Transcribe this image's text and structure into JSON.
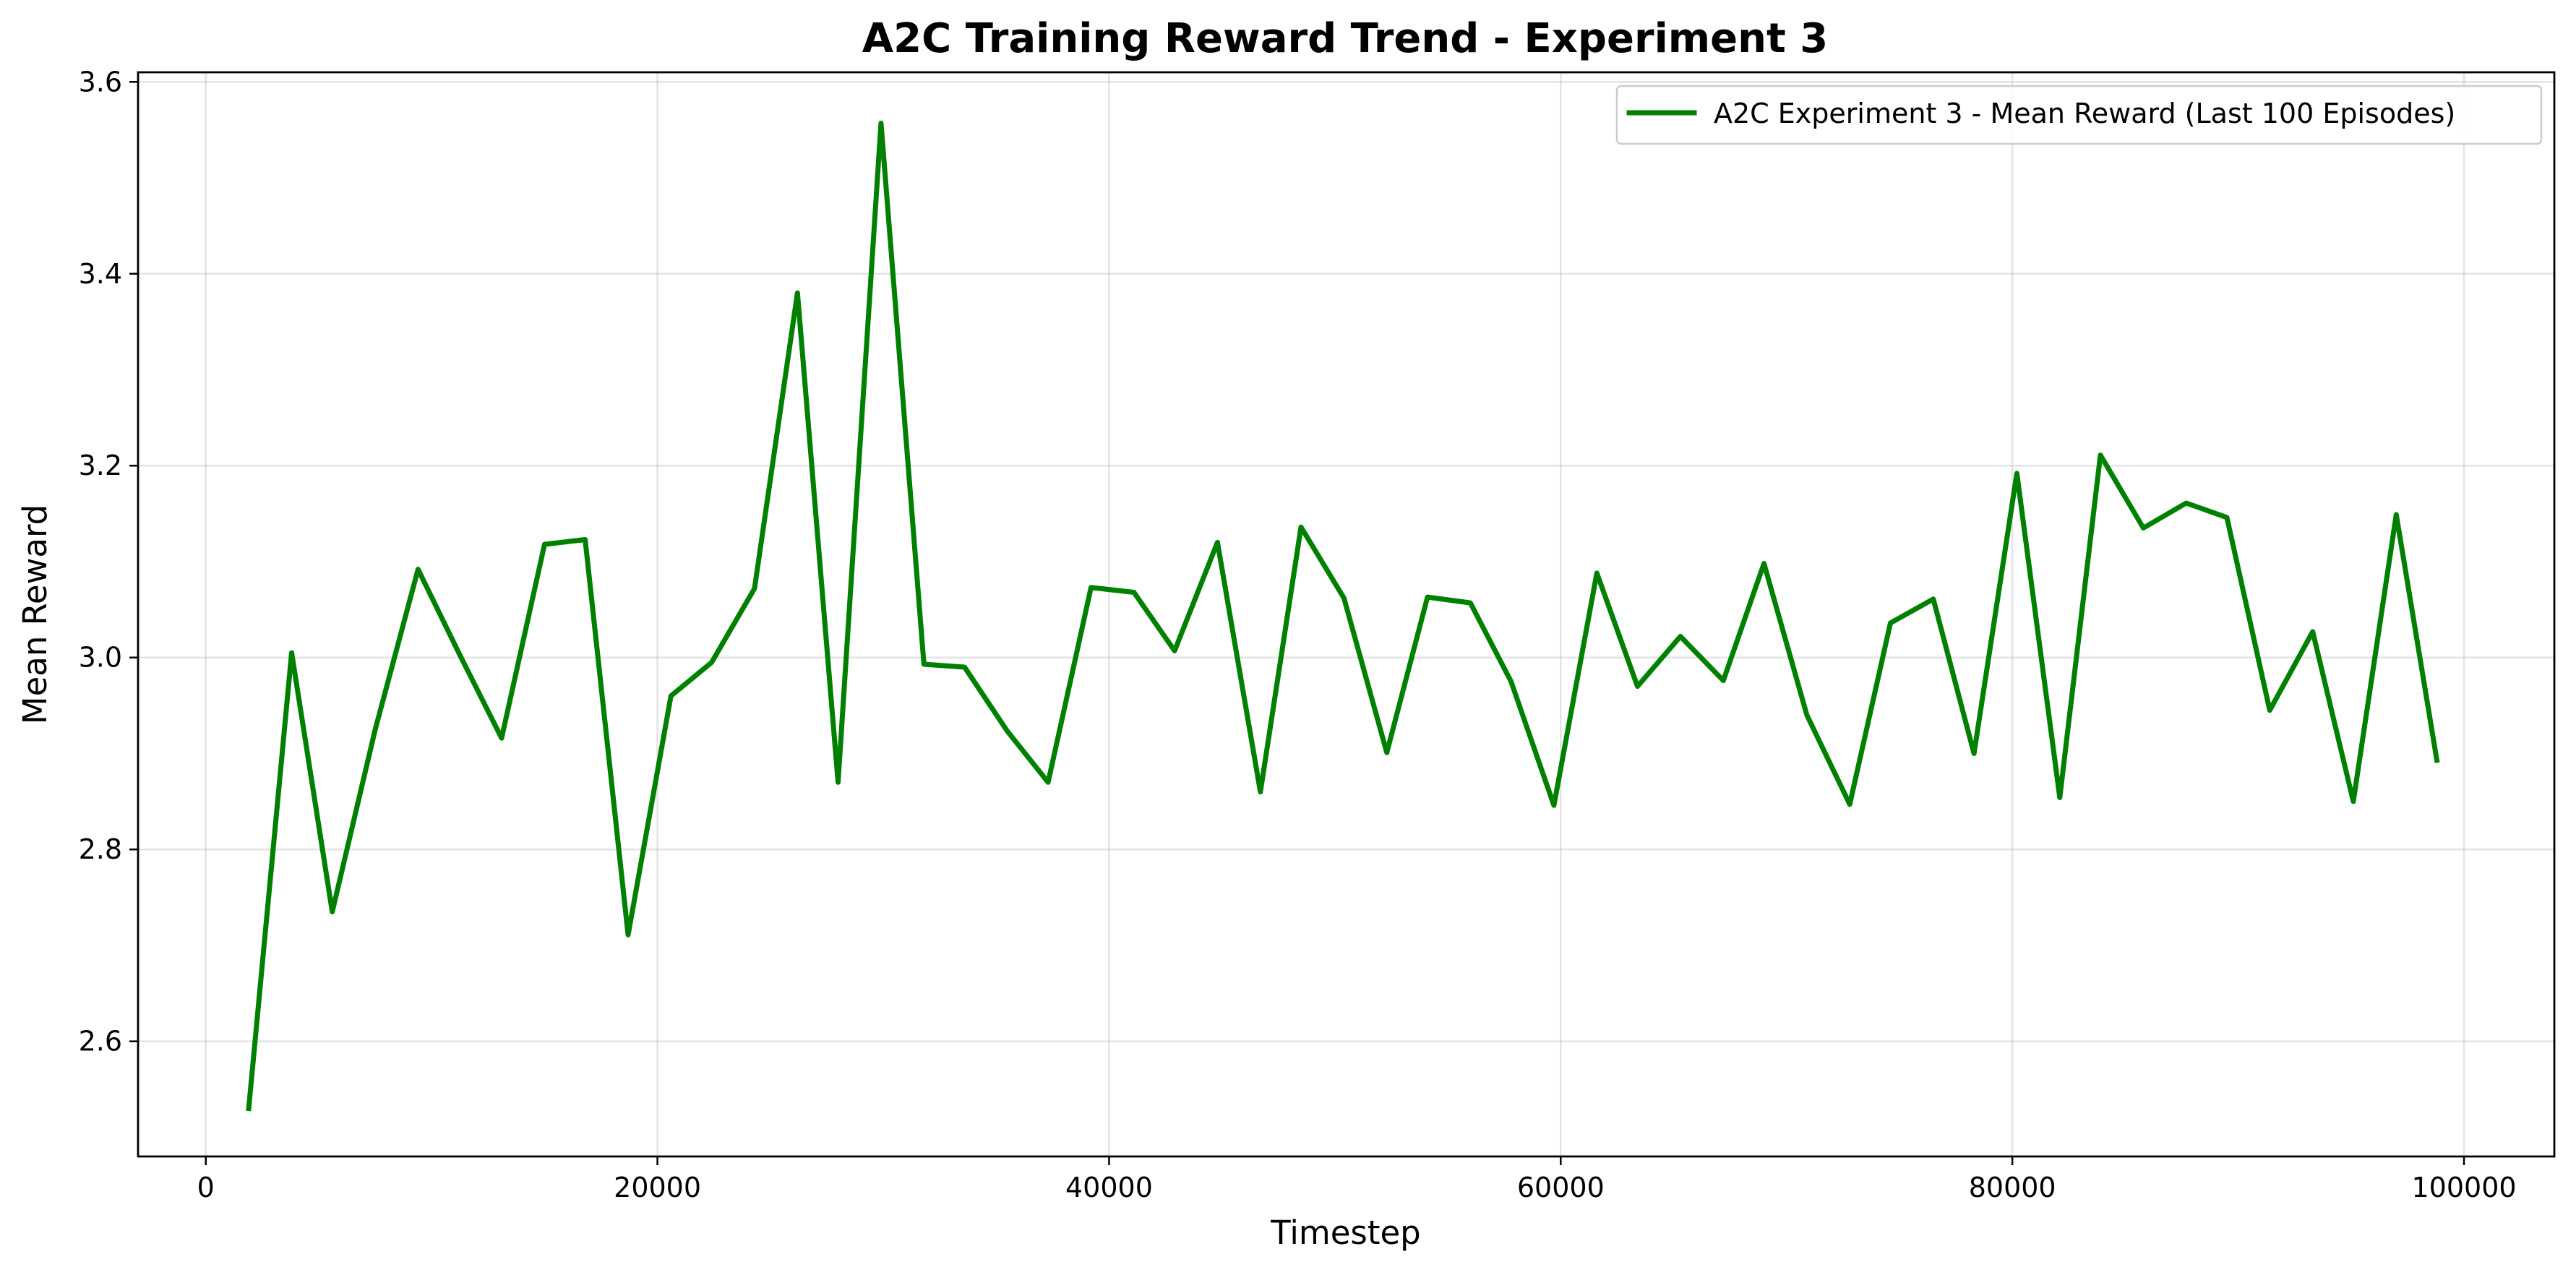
{
  "chart_data": {
    "type": "line",
    "title": "A2C Training Reward Trend - Experiment 3",
    "xlabel": "Timestep",
    "ylabel": "Mean Reward",
    "xlim": [
      -3000,
      104000
    ],
    "ylim": [
      2.48,
      3.61
    ],
    "xticks": [
      0,
      20000,
      40000,
      60000,
      80000,
      100000
    ],
    "yticks": [
      2.6,
      2.8,
      3.0,
      3.2,
      3.4,
      3.6
    ],
    "ytick_labels": [
      "2.6",
      "2.8",
      "3.0",
      "3.2",
      "3.4",
      "3.6"
    ],
    "grid": true,
    "legend_position": "top-right",
    "series": [
      {
        "name": "A2C Experiment 3 - Mean Reward (Last 100 Episodes)",
        "color": "#008000",
        "x": [
          1900,
          3800,
          5600,
          7500,
          9400,
          11200,
          13100,
          15000,
          16800,
          18700,
          20600,
          22400,
          24300,
          26200,
          28000,
          29900,
          31800,
          33600,
          35500,
          37300,
          39200,
          41100,
          42900,
          44800,
          46700,
          48500,
          50400,
          52300,
          54100,
          56000,
          57800,
          59700,
          61600,
          63400,
          65300,
          67200,
          69000,
          70900,
          72800,
          74600,
          76500,
          78300,
          80200,
          82100,
          83900,
          85800,
          87700,
          89500,
          91400,
          93300,
          95100,
          97000,
          98800
        ],
        "y": [
          2.53,
          3.005,
          2.735,
          2.925,
          3.092,
          3.005,
          2.916,
          3.118,
          3.123,
          2.711,
          2.96,
          2.995,
          3.072,
          3.38,
          2.87,
          3.557,
          2.993,
          2.99,
          2.923,
          2.87,
          3.073,
          3.068,
          3.007,
          3.12,
          2.86,
          3.136,
          3.062,
          2.901,
          3.063,
          3.057,
          2.975,
          2.846,
          3.088,
          2.97,
          3.022,
          2.976,
          3.098,
          2.94,
          2.847,
          3.036,
          3.061,
          2.9,
          3.192,
          2.854,
          3.211,
          3.135,
          3.161,
          3.146,
          2.945,
          3.027,
          2.85,
          3.149,
          2.893
        ]
      }
    ]
  }
}
